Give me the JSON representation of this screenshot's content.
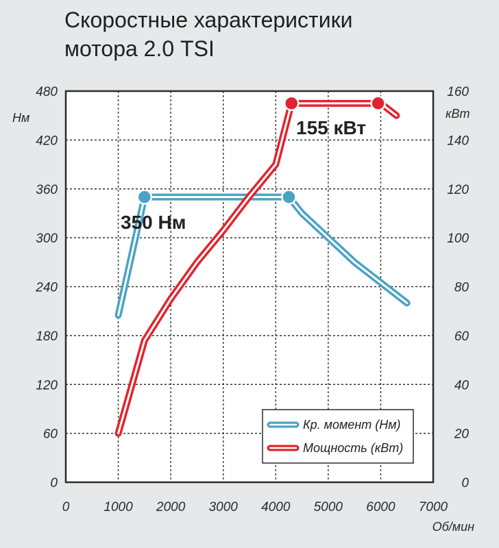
{
  "title_lines": [
    "Скоростные характеристики",
    "мотора 2.0 TSI"
  ],
  "chart_data": {
    "type": "line",
    "title": "Скоростные характеристики мотора 2.0 TSI",
    "xlabel": "Об/мин",
    "ylabel_left": "Нм",
    "ylabel_right": "кВт",
    "xlim": [
      0,
      7000
    ],
    "ylim_left": [
      0,
      480
    ],
    "ylim_right": [
      0,
      160
    ],
    "x_ticks": [
      "0",
      "1000",
      "2000",
      "3000",
      "4000",
      "5000",
      "6000",
      "7000"
    ],
    "y_left_ticks": [
      "0",
      "60",
      "120",
      "180",
      "240",
      "300",
      "360",
      "420",
      "480"
    ],
    "y_right_ticks": [
      "0",
      "20",
      "40",
      "60",
      "80",
      "100",
      "120",
      "140",
      "160"
    ],
    "grid": true,
    "legend_position": "bottom-right",
    "series": [
      {
        "name": "Кр. момент (Нм)",
        "axis": "left",
        "color": "#4aa3c4",
        "x": [
          1000,
          1500,
          4250,
          4500,
          5000,
          5500,
          6000,
          6500
        ],
        "y": [
          205,
          350,
          350,
          330,
          300,
          270,
          245,
          220
        ],
        "markers": [
          [
            1500,
            350
          ],
          [
            4250,
            350
          ]
        ]
      },
      {
        "name": "Мощность (кВт)",
        "axis": "right",
        "color": "#e0252f",
        "x": [
          1000,
          1500,
          2000,
          2500,
          3000,
          3500,
          4000,
          4300,
          6000,
          6300
        ],
        "y": [
          20,
          58,
          75,
          90,
          103,
          117,
          130,
          155,
          155,
          150
        ],
        "markers": [
          [
            4300,
            155
          ],
          [
            5950,
            155
          ]
        ]
      }
    ],
    "annotations": [
      "350 Нм",
      "155 кВт"
    ]
  }
}
